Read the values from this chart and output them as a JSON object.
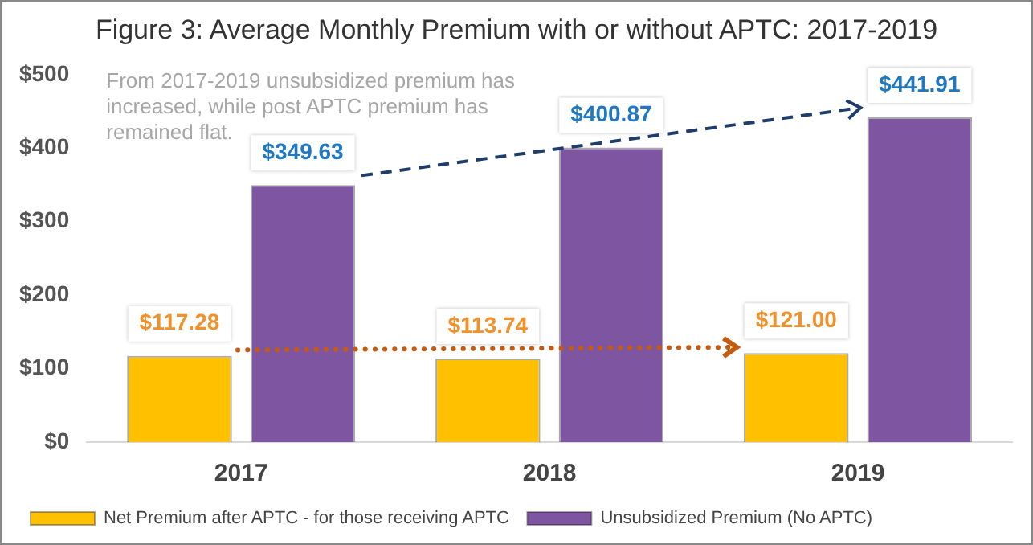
{
  "chart_data": {
    "type": "bar",
    "title": "Figure 3: Average Monthly Premium with or without APTC: 2017-2019",
    "categories": [
      "2017",
      "2018",
      "2019"
    ],
    "series": [
      {
        "name": "Net Premium after APTC - for those receiving APTC",
        "color": "#ffc000",
        "values": [
          117.28,
          113.74,
          121.0
        ],
        "value_labels": [
          "$117.28",
          "$113.74",
          "$121.00"
        ]
      },
      {
        "name": "Unsubsidized Premium (No APTC)",
        "color": "#7e55a0",
        "values": [
          349.63,
          400.87,
          441.91
        ],
        "value_labels": [
          "$349.63",
          "$400.87",
          "$441.91"
        ]
      }
    ],
    "ylim": [
      0,
      500
    ],
    "yticks": [
      {
        "value": 0,
        "label": "$0"
      },
      {
        "value": 100,
        "label": "$100"
      },
      {
        "value": 200,
        "label": "$200"
      },
      {
        "value": 300,
        "label": "$300"
      },
      {
        "value": 400,
        "label": "$400"
      },
      {
        "value": 500,
        "label": "$500"
      }
    ],
    "grid": false,
    "legend": "bottom left",
    "annotations": [
      "From 2017-2019 unsubsidized premium has increased, while post APTC premium has remained flat."
    ]
  }
}
